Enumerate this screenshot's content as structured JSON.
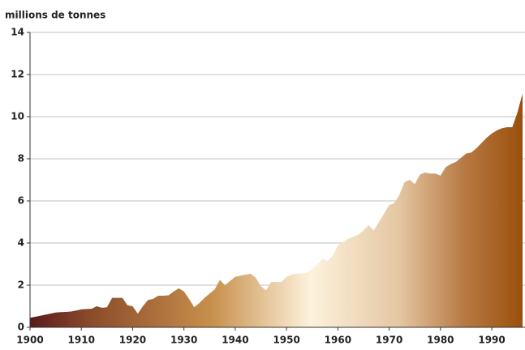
{
  "chart_data": {
    "type": "area",
    "y_axis_label": "millions de tonnes",
    "x": [
      1900,
      1901,
      1902,
      1903,
      1904,
      1905,
      1906,
      1907,
      1908,
      1909,
      1910,
      1911,
      1912,
      1913,
      1914,
      1915,
      1916,
      1917,
      1918,
      1919,
      1920,
      1921,
      1922,
      1923,
      1924,
      1925,
      1926,
      1927,
      1928,
      1929,
      1930,
      1931,
      1932,
      1933,
      1934,
      1935,
      1936,
      1937,
      1938,
      1939,
      1940,
      1941,
      1942,
      1943,
      1944,
      1945,
      1946,
      1947,
      1948,
      1949,
      1950,
      1951,
      1952,
      1953,
      1954,
      1955,
      1956,
      1957,
      1958,
      1959,
      1960,
      1961,
      1962,
      1963,
      1964,
      1965,
      1966,
      1967,
      1968,
      1969,
      1970,
      1971,
      1972,
      1973,
      1974,
      1975,
      1976,
      1977,
      1978,
      1979,
      1980,
      1981,
      1982,
      1983,
      1984,
      1985,
      1986,
      1987,
      1988,
      1989,
      1990,
      1991,
      1992,
      1993,
      1994,
      1995,
      1996
    ],
    "values": [
      0.45,
      0.5,
      0.55,
      0.6,
      0.65,
      0.7,
      0.72,
      0.73,
      0.75,
      0.8,
      0.85,
      0.87,
      0.88,
      1.0,
      0.93,
      0.95,
      1.4,
      1.4,
      1.4,
      1.05,
      1.0,
      0.65,
      1.0,
      1.3,
      1.35,
      1.5,
      1.5,
      1.52,
      1.7,
      1.85,
      1.7,
      1.35,
      0.95,
      1.15,
      1.4,
      1.6,
      1.8,
      2.25,
      2.0,
      2.2,
      2.4,
      2.45,
      2.5,
      2.55,
      2.35,
      1.95,
      1.75,
      2.15,
      2.15,
      2.15,
      2.4,
      2.5,
      2.55,
      2.55,
      2.6,
      2.75,
      3.0,
      3.25,
      3.15,
      3.4,
      3.9,
      4.05,
      4.2,
      4.3,
      4.4,
      4.6,
      4.85,
      4.6,
      5.0,
      5.4,
      5.8,
      5.9,
      6.3,
      6.9,
      7.0,
      6.8,
      7.25,
      7.35,
      7.3,
      7.3,
      7.2,
      7.6,
      7.75,
      7.85,
      8.05,
      8.25,
      8.3,
      8.5,
      8.75,
      9.0,
      9.2,
      9.35,
      9.45,
      9.5,
      9.5,
      10.2,
      11.1
    ],
    "xlim": [
      1900,
      1996
    ],
    "xticks": [
      1900,
      1910,
      1920,
      1930,
      1940,
      1950,
      1960,
      1970,
      1980,
      1990
    ],
    "ylim": [
      0,
      14
    ],
    "yticks": [
      0,
      2,
      4,
      6,
      8,
      10,
      12,
      14
    ],
    "grid": true
  }
}
